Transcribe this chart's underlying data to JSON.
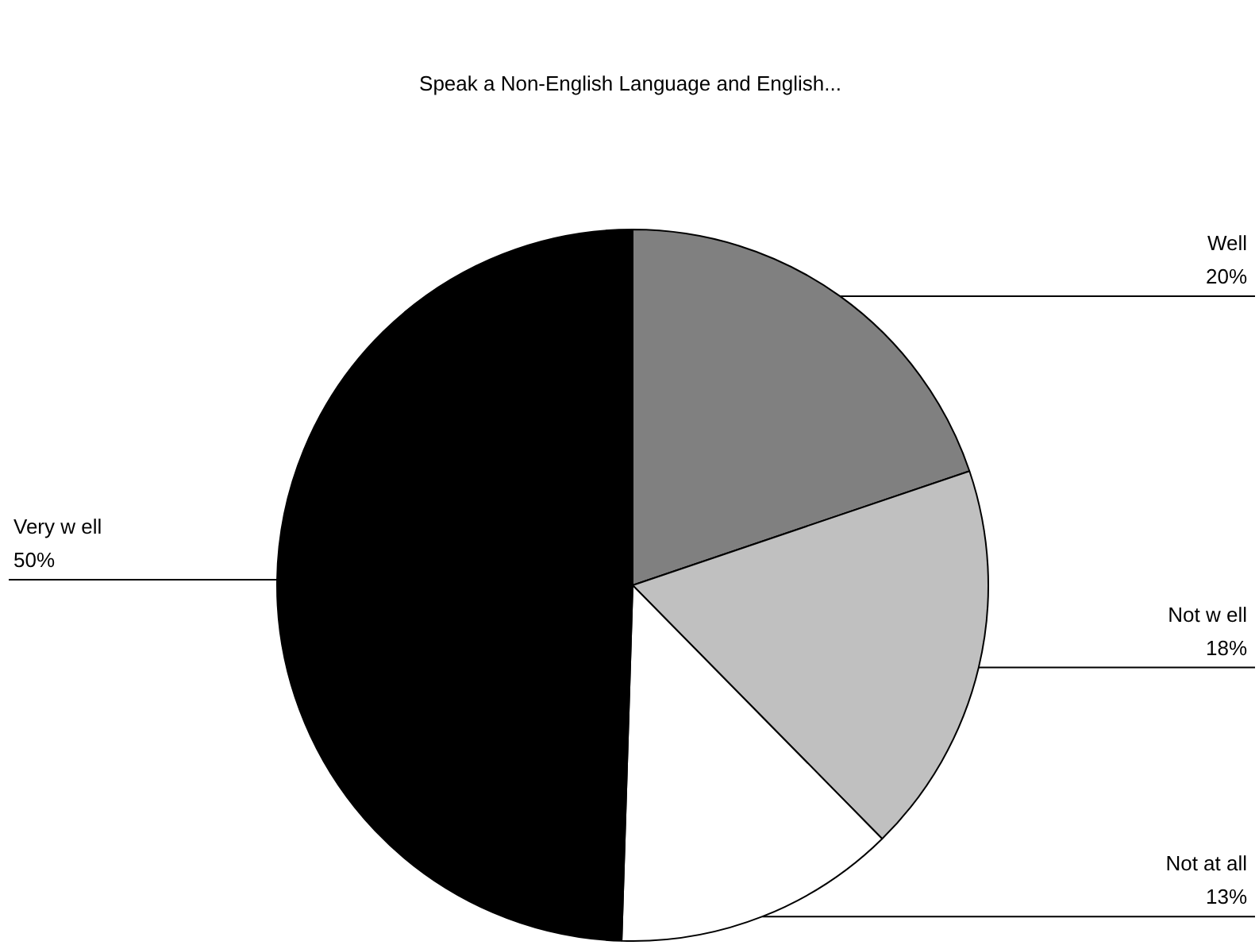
{
  "chart_data": {
    "type": "pie",
    "title": "Speak a Non-English Language and English...",
    "categories": [
      "Well",
      "Not w ell",
      "Not at all",
      "Very w ell"
    ],
    "values": [
      20,
      18,
      13,
      50
    ],
    "value_labels": [
      "20%",
      "18%",
      "13%",
      "50%"
    ],
    "colors": [
      "#808080",
      "#c0c0c0",
      "#ffffff",
      "#000000"
    ]
  }
}
